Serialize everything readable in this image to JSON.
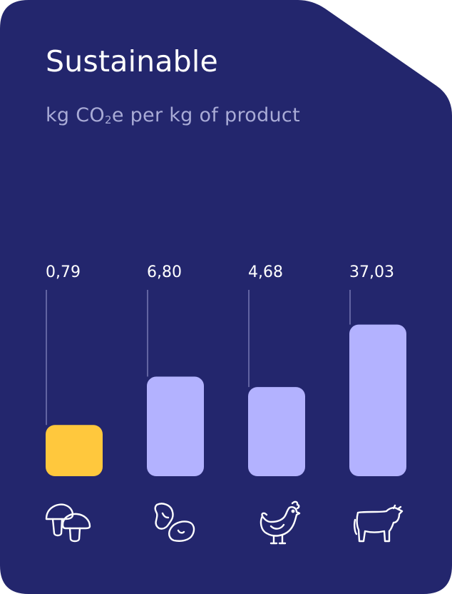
{
  "title": "Sustainable",
  "subtitle": {
    "pre": "kg CO",
    "sub": "2",
    "post": "e per kg of product"
  },
  "colors": {
    "background": "#23266d",
    "highlight_bar": "#ffc83d",
    "bar": "#b3b2ff",
    "value_text": "#ffffff",
    "leader_line": "#8b8dc6"
  },
  "chart_data": {
    "type": "bar",
    "title": "Sustainable",
    "subtitle": "kg CO₂e per kg of product",
    "xlabel": "",
    "ylabel": "",
    "categories": [
      "mushroom",
      "beans",
      "chicken",
      "beef"
    ],
    "values": [
      0.79,
      6.8,
      4.68,
      37.03
    ],
    "value_labels": [
      "0,79",
      "6,80",
      "4,68",
      "37,03"
    ],
    "category_icons": [
      "mushroom-icon",
      "beans-icon",
      "chicken-icon",
      "cow-icon"
    ],
    "highlight_index": 0,
    "grid": false,
    "legend": "none"
  }
}
